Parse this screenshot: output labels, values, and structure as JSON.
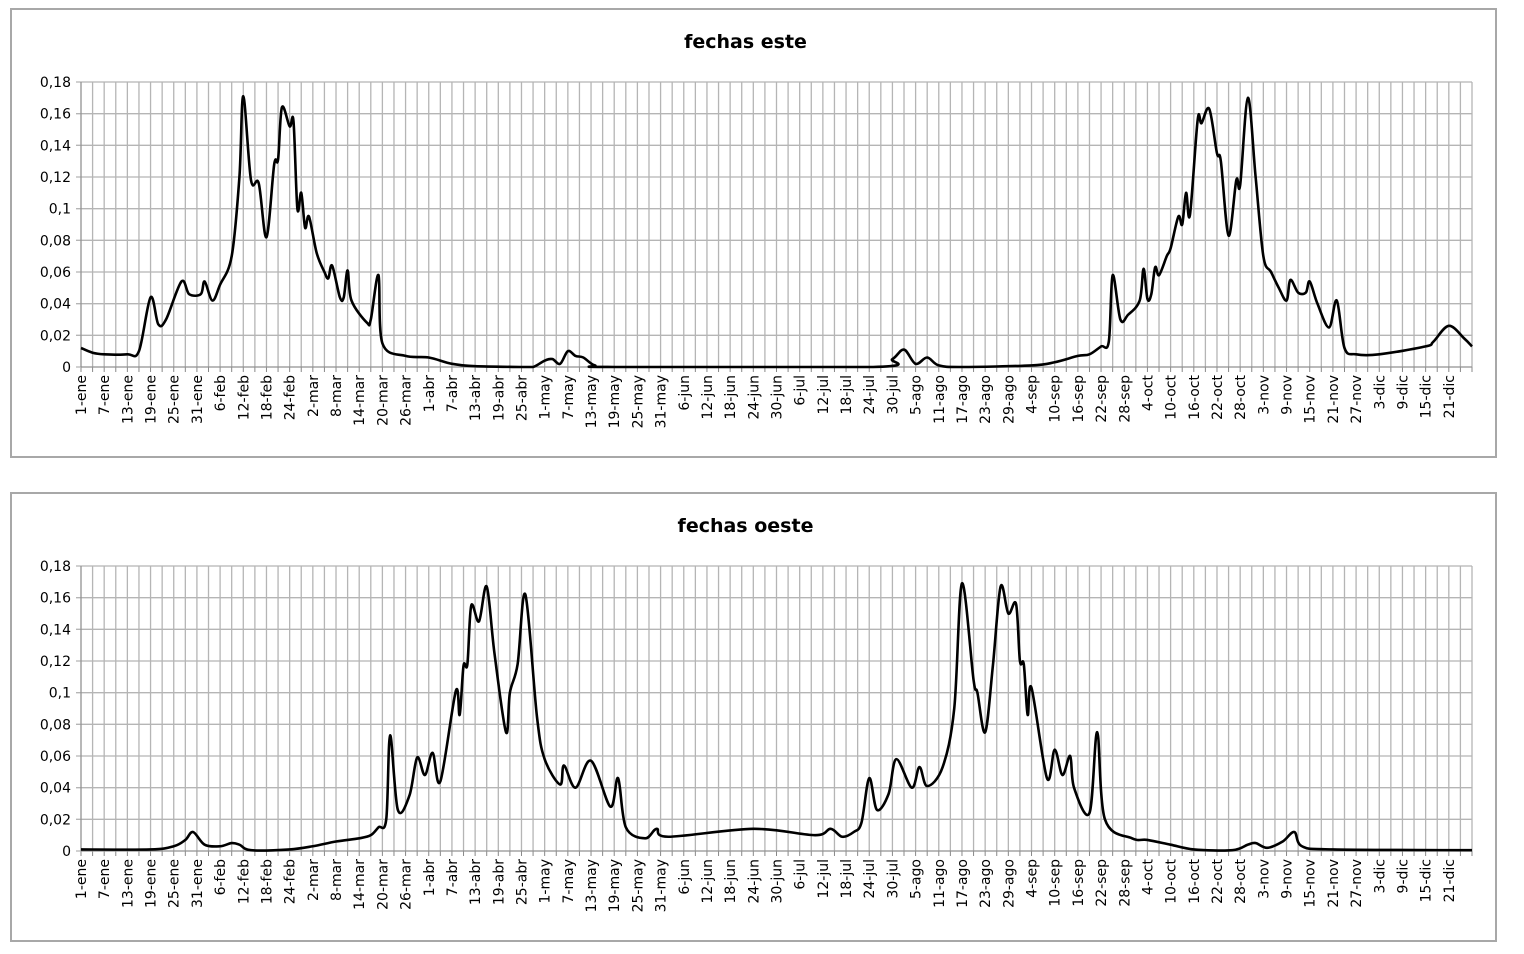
{
  "chart_data": [
    {
      "type": "line",
      "title": "fechas este",
      "ylim": [
        0,
        0.18
      ],
      "y_ticks": [
        "0",
        "0,02",
        "0,04",
        "0,06",
        "0,08",
        "0,1",
        "0,12",
        "0,14",
        "0,16",
        "0,18"
      ],
      "y_values": [
        0,
        0.02,
        0.04,
        0.06,
        0.08,
        0.1,
        0.12,
        0.14,
        0.16,
        0.18
      ],
      "grid": true,
      "line_color": "#000000",
      "x_ticks": [
        "1-ene",
        "7-ene",
        "13-ene",
        "19-ene",
        "25-ene",
        "31-ene",
        "6-feb",
        "12-feb",
        "18-feb",
        "24-feb",
        "2-mar",
        "8-mar",
        "14-mar",
        "20-mar",
        "26-mar",
        "1-abr",
        "7-abr",
        "13-abr",
        "19-abr",
        "25-abr",
        "1-may",
        "7-may",
        "13-may",
        "19-may",
        "25-may",
        "31-may",
        "6-jun",
        "12-jun",
        "18-jun",
        "24-jun",
        "30-jun",
        "6-jul",
        "12-jul",
        "18-jul",
        "24-jul",
        "30-jul",
        "5-ago",
        "11-ago",
        "17-ago",
        "23-ago",
        "29-ago",
        "4-sep",
        "10-sep",
        "16-sep",
        "22-sep",
        "28-sep",
        "4-oct",
        "10-oct",
        "16-oct",
        "22-oct",
        "28-oct",
        "3-nov",
        "9-nov",
        "15-nov",
        "21-nov",
        "27-nov",
        "3-dic",
        "9-dic",
        "15-dic",
        "21-dic"
      ],
      "points": [
        [
          "1-ene",
          0.012
        ],
        [
          "4-ene",
          0.009
        ],
        [
          "7-ene",
          0.008
        ],
        [
          "13-ene",
          0.008
        ],
        [
          "16-ene",
          0.01
        ],
        [
          "19-ene",
          0.044
        ],
        [
          "21-ene",
          0.027
        ],
        [
          "23-ene",
          0.03
        ],
        [
          "27-ene",
          0.054
        ],
        [
          "29-ene",
          0.046
        ],
        [
          "1-feb",
          0.046
        ],
        [
          "2-feb",
          0.054
        ],
        [
          "4-feb",
          0.042
        ],
        [
          "6-feb",
          0.052
        ],
        [
          "9-feb",
          0.07
        ],
        [
          "11-feb",
          0.12
        ],
        [
          "12-feb",
          0.171
        ],
        [
          "14-feb",
          0.118
        ],
        [
          "16-feb",
          0.116
        ],
        [
          "18-feb",
          0.082
        ],
        [
          "20-feb",
          0.128
        ],
        [
          "21-feb",
          0.131
        ],
        [
          "22-feb",
          0.164
        ],
        [
          "24-feb",
          0.152
        ],
        [
          "25-feb",
          0.155
        ],
        [
          "26-feb",
          0.1
        ],
        [
          "27-feb",
          0.11
        ],
        [
          "28-feb",
          0.088
        ],
        [
          "1-mar",
          0.095
        ],
        [
          "3-mar",
          0.072
        ],
        [
          "5-mar",
          0.06
        ],
        [
          "6-mar",
          0.056
        ],
        [
          "7-mar",
          0.064
        ],
        [
          "9-mar",
          0.044
        ],
        [
          "10-mar",
          0.044
        ],
        [
          "11-mar",
          0.061
        ],
        [
          "12-mar",
          0.042
        ],
        [
          "16-mar",
          0.028
        ],
        [
          "17-mar",
          0.03
        ],
        [
          "19-mar",
          0.058
        ],
        [
          "20-mar",
          0.015
        ],
        [
          "26-mar",
          0.007
        ],
        [
          "1-abr",
          0.006
        ],
        [
          "7-abr",
          0.002
        ],
        [
          "13-abr",
          0.0005
        ],
        [
          "25-abr",
          0
        ],
        [
          "28-abr",
          0
        ],
        [
          "1-may",
          0.004
        ],
        [
          "3-may",
          0.005
        ],
        [
          "5-may",
          0.002
        ],
        [
          "7-may",
          0.01
        ],
        [
          "9-may",
          0.007
        ],
        [
          "11-may",
          0.006
        ],
        [
          "14-may",
          0.001
        ],
        [
          "19-may",
          0
        ],
        [
          "25-jul",
          0
        ],
        [
          "30-jul",
          0.005
        ],
        [
          "2-ago",
          0.011
        ],
        [
          "5-ago",
          0.002
        ],
        [
          "8-ago",
          0.006
        ],
        [
          "11-ago",
          0.001
        ],
        [
          "17-ago",
          0
        ],
        [
          "4-sep",
          0.001
        ],
        [
          "10-sep",
          0.003
        ],
        [
          "16-sep",
          0.007
        ],
        [
          "19-sep",
          0.008
        ],
        [
          "22-sep",
          0.013
        ],
        [
          "24-sep",
          0.016
        ],
        [
          "25-sep",
          0.058
        ],
        [
          "27-sep",
          0.03
        ],
        [
          "29-sep",
          0.033
        ],
        [
          "2-oct",
          0.042
        ],
        [
          "3-oct",
          0.062
        ],
        [
          "4-oct",
          0.043
        ],
        [
          "5-oct",
          0.046
        ],
        [
          "6-oct",
          0.063
        ],
        [
          "7-oct",
          0.058
        ],
        [
          "9-oct",
          0.07
        ],
        [
          "10-oct",
          0.075
        ],
        [
          "12-oct",
          0.095
        ],
        [
          "13-oct",
          0.09
        ],
        [
          "14-oct",
          0.11
        ],
        [
          "15-oct",
          0.096
        ],
        [
          "17-oct",
          0.156
        ],
        [
          "18-oct",
          0.154
        ],
        [
          "20-oct",
          0.163
        ],
        [
          "22-oct",
          0.135
        ],
        [
          "23-oct",
          0.13
        ],
        [
          "25-oct",
          0.083
        ],
        [
          "27-oct",
          0.118
        ],
        [
          "28-oct",
          0.115
        ],
        [
          "30-oct",
          0.17
        ],
        [
          "1-nov",
          0.12
        ],
        [
          "3-nov",
          0.07
        ],
        [
          "5-nov",
          0.06
        ],
        [
          "7-nov",
          0.05
        ],
        [
          "9-nov",
          0.042
        ],
        [
          "10-nov",
          0.055
        ],
        [
          "12-nov",
          0.047
        ],
        [
          "14-nov",
          0.047
        ],
        [
          "15-nov",
          0.054
        ],
        [
          "17-nov",
          0.04
        ],
        [
          "20-nov",
          0.025
        ],
        [
          "22-nov",
          0.042
        ],
        [
          "24-nov",
          0.012
        ],
        [
          "27-nov",
          0.008
        ],
        [
          "3-dic",
          0.008
        ],
        [
          "15-dic",
          0.013
        ],
        [
          "17-dic",
          0.016
        ],
        [
          "21-dic",
          0.026
        ],
        [
          "25-dic",
          0.018
        ],
        [
          "27-dic",
          0.013
        ]
      ]
    },
    {
      "type": "line",
      "title": "fechas oeste",
      "ylim": [
        0,
        0.18
      ],
      "y_ticks": [
        "0",
        "0,02",
        "0,04",
        "0,06",
        "0,08",
        "0,1",
        "0,12",
        "0,14",
        "0,16",
        "0,18"
      ],
      "y_values": [
        0,
        0.02,
        0.04,
        0.06,
        0.08,
        0.1,
        0.12,
        0.14,
        0.16,
        0.18
      ],
      "grid": true,
      "line_color": "#000000",
      "x_ticks": [
        "1-ene",
        "7-ene",
        "13-ene",
        "19-ene",
        "25-ene",
        "31-ene",
        "6-feb",
        "12-feb",
        "18-feb",
        "24-feb",
        "2-mar",
        "8-mar",
        "14-mar",
        "20-mar",
        "26-mar",
        "1-abr",
        "7-abr",
        "13-abr",
        "19-abr",
        "25-abr",
        "1-may",
        "7-may",
        "13-may",
        "19-may",
        "25-may",
        "31-may",
        "6-jun",
        "12-jun",
        "18-jun",
        "24-jun",
        "30-jun",
        "6-jul",
        "12-jul",
        "18-jul",
        "24-jul",
        "30-jul",
        "5-ago",
        "11-ago",
        "17-ago",
        "23-ago",
        "29-ago",
        "4-sep",
        "10-sep",
        "16-sep",
        "22-sep",
        "28-sep",
        "4-oct",
        "10-oct",
        "16-oct",
        "22-oct",
        "28-oct",
        "3-nov",
        "9-nov",
        "15-nov",
        "21-nov",
        "27-nov",
        "3-dic",
        "9-dic",
        "15-dic",
        "21-dic"
      ],
      "points": [
        [
          "1-ene",
          0.001
        ],
        [
          "19-ene",
          0.001
        ],
        [
          "25-ene",
          0.003
        ],
        [
          "28-ene",
          0.007
        ],
        [
          "30-ene",
          0.012
        ],
        [
          "2-feb",
          0.004
        ],
        [
          "6-feb",
          0.003
        ],
        [
          "9-feb",
          0.005
        ],
        [
          "11-feb",
          0.004
        ],
        [
          "14-feb",
          0.0005
        ],
        [
          "24-feb",
          0.001
        ],
        [
          "2-mar",
          0.003
        ],
        [
          "8-mar",
          0.006
        ],
        [
          "14-mar",
          0.008
        ],
        [
          "17-mar",
          0.01
        ],
        [
          "19-mar",
          0.015
        ],
        [
          "21-mar",
          0.02
        ],
        [
          "22-mar",
          0.073
        ],
        [
          "24-mar",
          0.026
        ],
        [
          "27-mar",
          0.035
        ],
        [
          "29-mar",
          0.059
        ],
        [
          "31-mar",
          0.048
        ],
        [
          "2-abr",
          0.062
        ],
        [
          "4-abr",
          0.044
        ],
        [
          "8-abr",
          0.101
        ],
        [
          "9-abr",
          0.086
        ],
        [
          "10-abr",
          0.117
        ],
        [
          "11-abr",
          0.118
        ],
        [
          "12-abr",
          0.155
        ],
        [
          "14-abr",
          0.145
        ],
        [
          "16-abr",
          0.167
        ],
        [
          "18-abr",
          0.125
        ],
        [
          "21-abr",
          0.075
        ],
        [
          "22-abr",
          0.1
        ],
        [
          "24-abr",
          0.118
        ],
        [
          "26-abr",
          0.162
        ],
        [
          "29-abr",
          0.085
        ],
        [
          "1-may",
          0.058
        ],
        [
          "5-may",
          0.042
        ],
        [
          "6-may",
          0.054
        ],
        [
          "9-may",
          0.04
        ],
        [
          "13-may",
          0.057
        ],
        [
          "18-may",
          0.028
        ],
        [
          "20-may",
          0.046
        ],
        [
          "22-may",
          0.015
        ],
        [
          "27-may",
          0.008
        ],
        [
          "30-may",
          0.014
        ],
        [
          "2-jun",
          0.009
        ],
        [
          "24-jun",
          0.014
        ],
        [
          "10-jul",
          0.01
        ],
        [
          "14-jul",
          0.014
        ],
        [
          "17-jul",
          0.009
        ],
        [
          "20-jul",
          0.012
        ],
        [
          "22-jul",
          0.018
        ],
        [
          "24-jul",
          0.046
        ],
        [
          "26-jul",
          0.026
        ],
        [
          "29-jul",
          0.036
        ],
        [
          "31-jul",
          0.058
        ],
        [
          "4-ago",
          0.04
        ],
        [
          "6-ago",
          0.053
        ],
        [
          "8-ago",
          0.041
        ],
        [
          "12-ago",
          0.053
        ],
        [
          "15-ago",
          0.09
        ],
        [
          "17-ago",
          0.169
        ],
        [
          "20-ago",
          0.108
        ],
        [
          "21-ago",
          0.1
        ],
        [
          "23-ago",
          0.075
        ],
        [
          "25-ago",
          0.117
        ],
        [
          "27-ago",
          0.167
        ],
        [
          "29-ago",
          0.15
        ],
        [
          "31-ago",
          0.156
        ],
        [
          "1-sep",
          0.12
        ],
        [
          "2-sep",
          0.118
        ],
        [
          "3-sep",
          0.086
        ],
        [
          "4-sep",
          0.103
        ],
        [
          "8-sep",
          0.046
        ],
        [
          "10-sep",
          0.064
        ],
        [
          "12-sep",
          0.048
        ],
        [
          "14-sep",
          0.06
        ],
        [
          "15-sep",
          0.04
        ],
        [
          "19-sep",
          0.024
        ],
        [
          "21-sep",
          0.075
        ],
        [
          "23-sep",
          0.02
        ],
        [
          "30-sep",
          0.008
        ],
        [
          "4-oct",
          0.007
        ],
        [
          "10-oct",
          0.004
        ],
        [
          "16-oct",
          0.001
        ],
        [
          "26-oct",
          0.0005
        ],
        [
          "30-oct",
          0.004
        ],
        [
          "1-nov",
          0.005
        ],
        [
          "4-nov",
          0.002
        ],
        [
          "8-nov",
          0.006
        ],
        [
          "11-nov",
          0.012
        ],
        [
          "13-nov",
          0.003
        ],
        [
          "21-nov",
          0.001
        ],
        [
          "27-dic",
          0.0005
        ]
      ]
    }
  ]
}
